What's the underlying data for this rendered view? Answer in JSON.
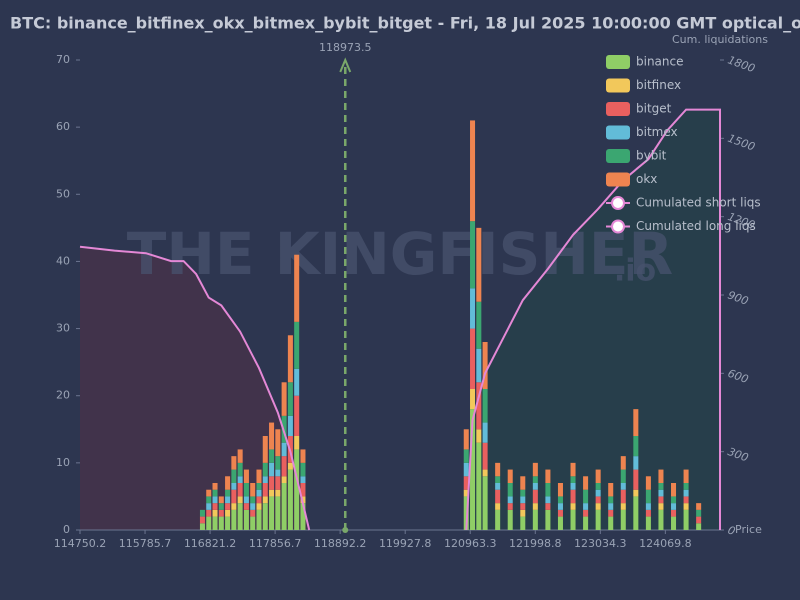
{
  "chart_data": {
    "type": "bar",
    "title": "BTC: binance_bitfinex_okx_bitmex_bybit_bitget - Fri, 18 Jul 2025 10:00:00 GMT optical_opti",
    "watermark": "THE KINGFISHER",
    "watermark_suffix": ".io",
    "x_label": "Price",
    "y2_label": "Cum. liquidations",
    "current_price": 118973.5,
    "current_price_color": "#7aa86a",
    "xlim": [
      114750.2,
      124940
    ],
    "xticks": [
      114750.2,
      115785.7,
      116821.2,
      117856.7,
      118892.2,
      119927.8,
      120963.3,
      121998.8,
      123034.3,
      124069.8
    ],
    "ylim": [
      0,
      70
    ],
    "yticks": [
      0,
      10,
      20,
      30,
      40,
      50,
      60,
      70
    ],
    "y2lim": [
      0,
      1800
    ],
    "y2ticks": [
      0,
      300,
      600,
      900,
      1200,
      1500,
      1800
    ],
    "stacked": true,
    "x": [
      116700,
      116800,
      116900,
      117000,
      117100,
      117200,
      117300,
      117400,
      117500,
      117600,
      117700,
      117800,
      117900,
      118000,
      118100,
      118200,
      118300,
      120900,
      121000,
      121100,
      121200,
      121400,
      121600,
      121800,
      122000,
      122200,
      122400,
      122600,
      122800,
      123000,
      123200,
      123400,
      123600,
      123800,
      124000,
      124200,
      124400,
      124600
    ],
    "series": [
      {
        "name": "binance",
        "color": "#8fce66",
        "values": [
          1,
          2,
          2,
          2,
          2,
          3,
          4,
          3,
          2,
          3,
          4,
          5,
          5,
          7,
          9,
          12,
          4,
          5,
          18,
          13,
          8,
          3,
          3,
          2,
          3,
          3,
          2,
          3,
          2,
          3,
          2,
          3,
          5,
          2,
          3,
          2,
          3,
          1
        ]
      },
      {
        "name": "bitfinex",
        "color": "#f2c85b",
        "values": [
          0,
          0,
          1,
          0,
          1,
          1,
          1,
          0,
          0,
          1,
          1,
          1,
          1,
          1,
          1,
          2,
          1,
          1,
          3,
          2,
          1,
          1,
          0,
          1,
          1,
          0,
          0,
          1,
          0,
          1,
          0,
          1,
          1,
          0,
          1,
          0,
          1,
          0
        ]
      },
      {
        "name": "bitget",
        "color": "#e9605f",
        "values": [
          1,
          1,
          1,
          1,
          1,
          2,
          2,
          1,
          1,
          1,
          2,
          2,
          2,
          3,
          4,
          6,
          2,
          2,
          9,
          7,
          4,
          2,
          1,
          1,
          2,
          1,
          1,
          2,
          1,
          1,
          1,
          2,
          3,
          1,
          1,
          1,
          1,
          1
        ]
      },
      {
        "name": "bitmex",
        "color": "#62bcd8",
        "values": [
          0,
          1,
          1,
          0,
          1,
          1,
          1,
          1,
          1,
          1,
          1,
          2,
          1,
          2,
          3,
          4,
          1,
          2,
          6,
          5,
          3,
          1,
          1,
          1,
          1,
          1,
          1,
          1,
          1,
          1,
          1,
          1,
          2,
          1,
          1,
          1,
          1,
          0
        ]
      },
      {
        "name": "bybit",
        "color": "#3ba671",
        "values": [
          1,
          1,
          1,
          1,
          1,
          2,
          2,
          2,
          1,
          1,
          2,
          2,
          2,
          4,
          5,
          7,
          2,
          2,
          10,
          7,
          5,
          1,
          2,
          1,
          1,
          2,
          1,
          1,
          2,
          1,
          1,
          2,
          3,
          2,
          1,
          1,
          1,
          1
        ]
      },
      {
        "name": "okx",
        "color": "#ee8450",
        "values": [
          0,
          1,
          1,
          1,
          2,
          2,
          2,
          2,
          2,
          2,
          4,
          4,
          4,
          5,
          7,
          10,
          2,
          3,
          15,
          11,
          7,
          2,
          2,
          2,
          2,
          2,
          2,
          2,
          2,
          2,
          2,
          2,
          4,
          2,
          2,
          2,
          2,
          1
        ]
      },
      {
        "name": "Cumulated short liqs",
        "type": "line",
        "axis": "y2",
        "color": "#e488d6",
        "fill": "#27404a",
        "x": [
          120900,
          121000,
          121200,
          121500,
          121800,
          122200,
          122600,
          123000,
          123400,
          123800,
          124100,
          124400,
          124700,
          124940,
          124940
        ],
        "values": [
          0,
          420,
          600,
          740,
          880,
          1000,
          1130,
          1230,
          1340,
          1420,
          1530,
          1610,
          1610,
          1610,
          0
        ]
      },
      {
        "name": "Cumulated long liqs",
        "type": "line",
        "axis": "y2",
        "color": "#e488d6",
        "fill": "#45334a",
        "x": [
          114750.2,
          115300,
          115800,
          116200,
          116400,
          116600,
          116800,
          117000,
          117300,
          117600,
          117900,
          118100,
          118300,
          118400
        ],
        "values": [
          1085,
          1070,
          1060,
          1030,
          1030,
          980,
          890,
          860,
          760,
          620,
          450,
          300,
          100,
          0
        ]
      }
    ]
  }
}
